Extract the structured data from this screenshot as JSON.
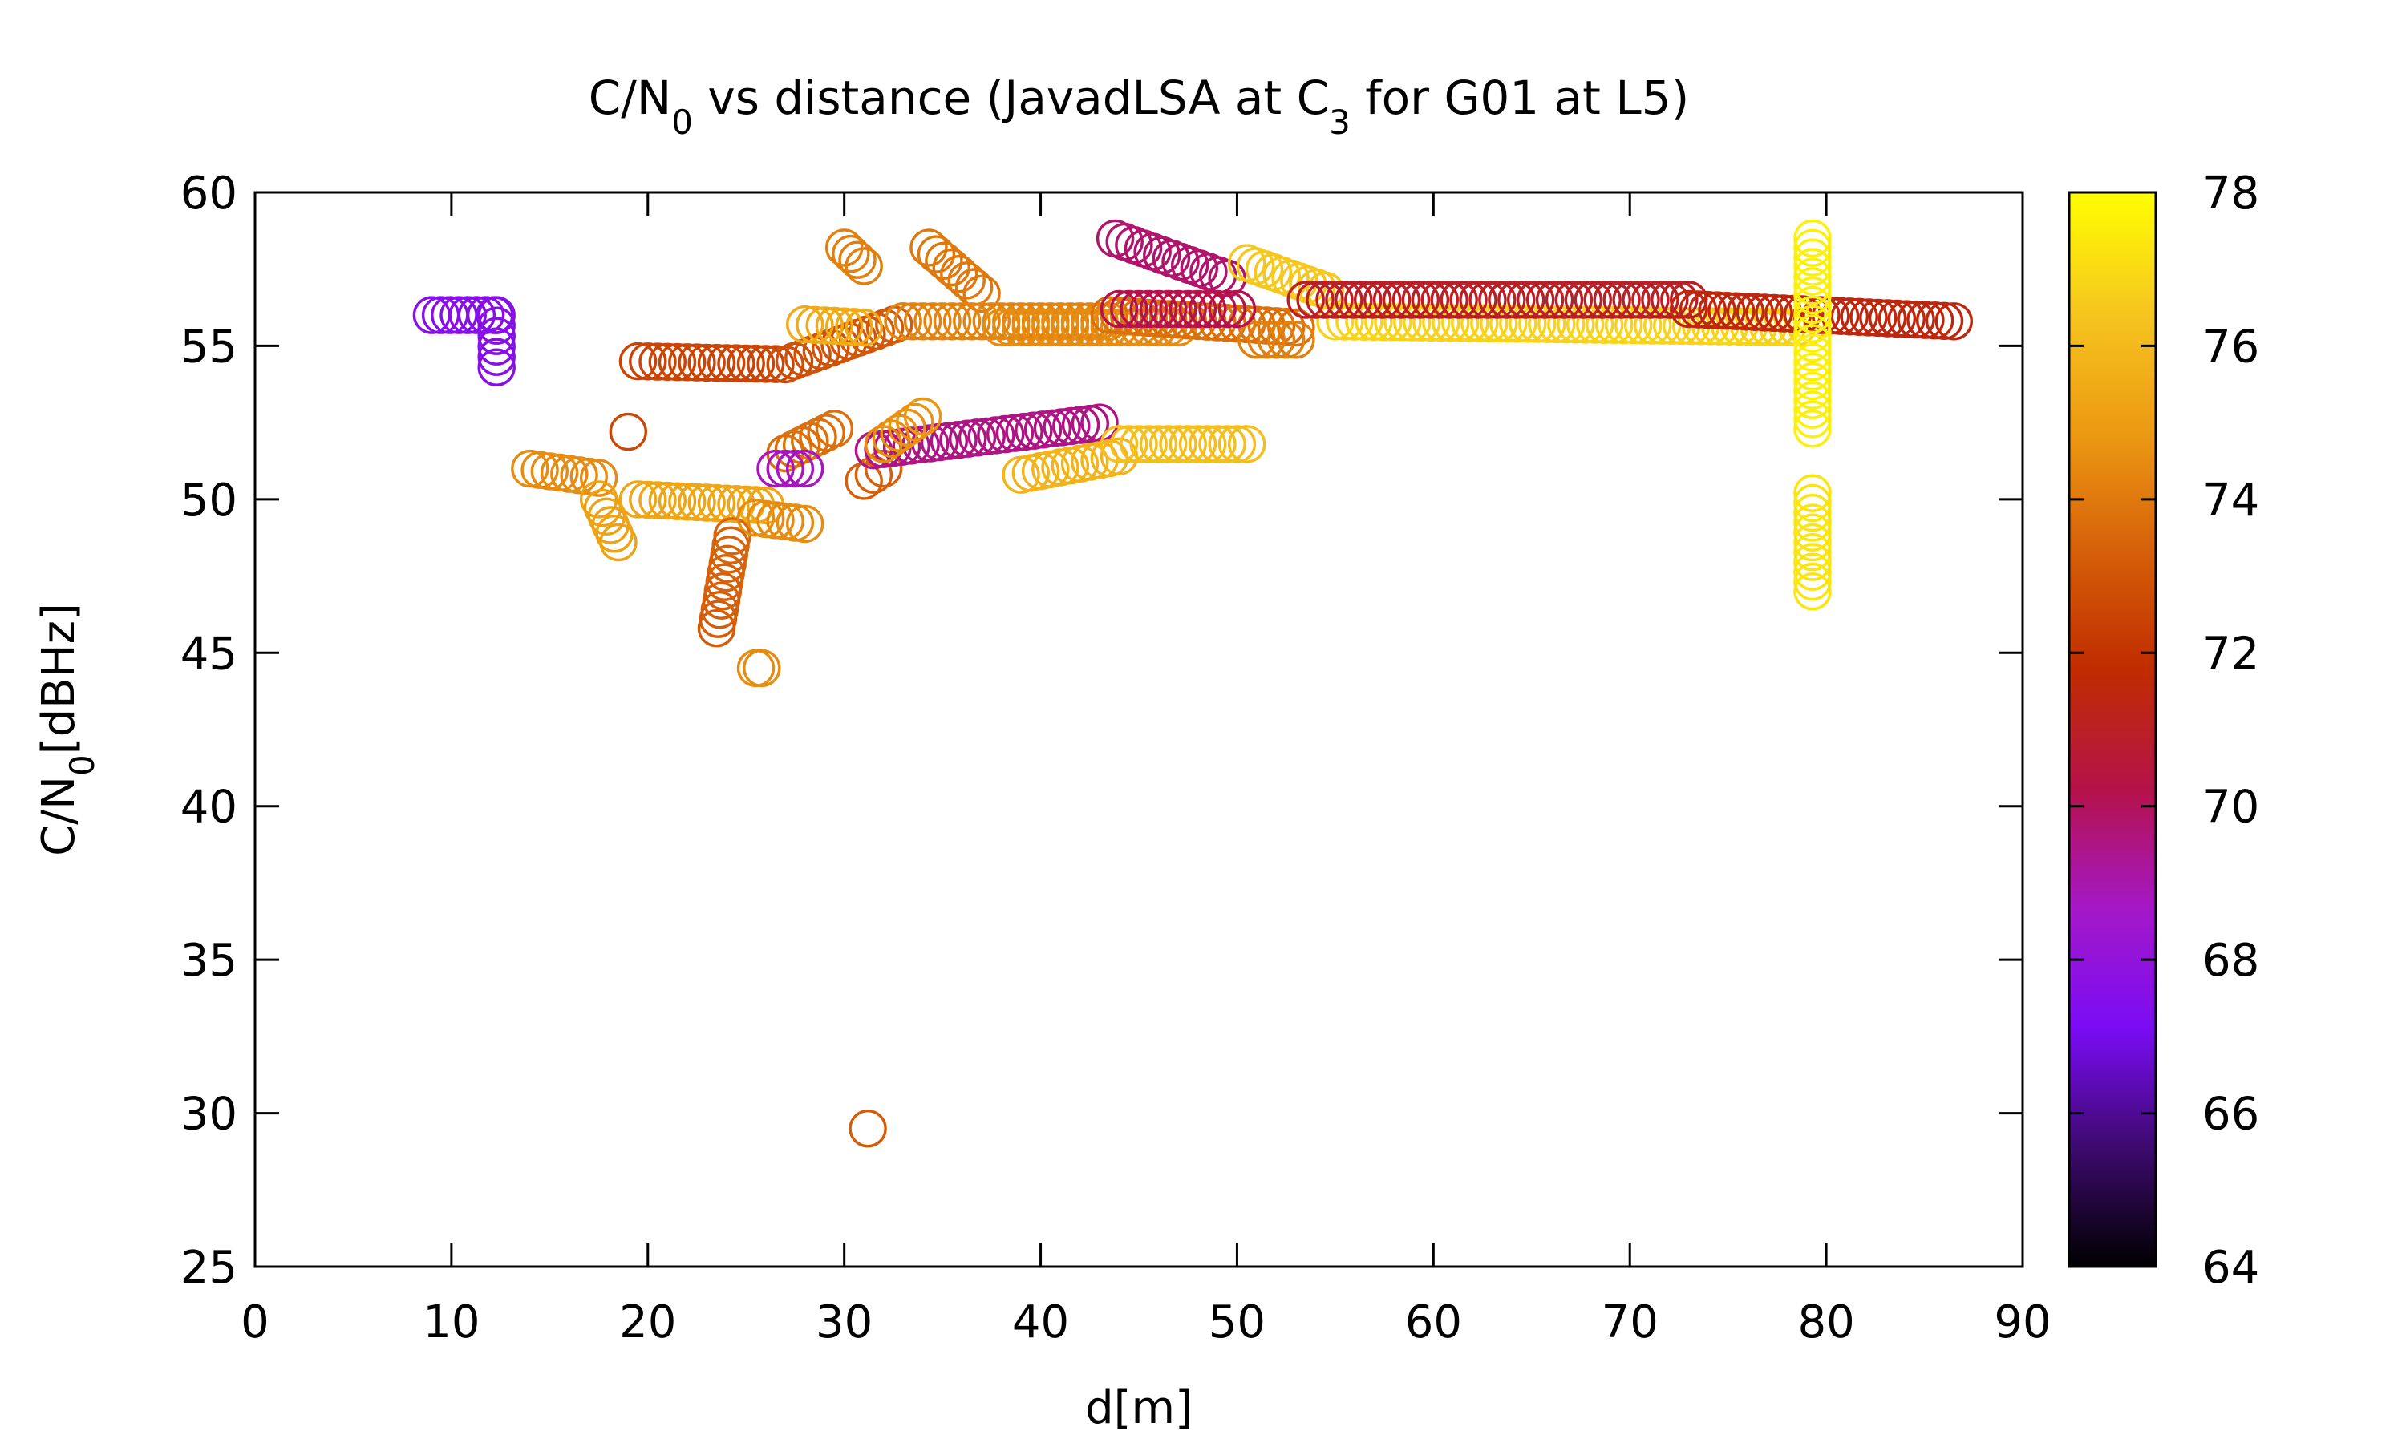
{
  "chart_data": {
    "type": "scatter",
    "title": {
      "parts": [
        "C/N",
        "0",
        " vs distance (JavadLSA at C",
        "3",
        " for G01 at L5)"
      ]
    },
    "xlabel": "d[m]",
    "ylabel": {
      "parts": [
        "C/N",
        "0",
        "[dBHz]"
      ]
    },
    "xlim": [
      0,
      90
    ],
    "ylim": [
      25,
      60
    ],
    "x_ticks": [
      "0",
      "10",
      "20",
      "30",
      "40",
      "50",
      "60",
      "70",
      "80",
      "90"
    ],
    "y_ticks": [
      "25",
      "30",
      "35",
      "40",
      "45",
      "50",
      "55",
      "60"
    ],
    "colorbar": {
      "range": [
        64,
        78
      ],
      "ticks": [
        "64",
        "66",
        "68",
        "70",
        "72",
        "74",
        "76",
        "78"
      ],
      "palette": [
        "#000000",
        "#3d0a6e",
        "#7a0cf5",
        "#a418c7",
        "#b5124a",
        "#c02c00",
        "#d5600a",
        "#ec9a12",
        "#f6c61f",
        "#ffff00"
      ]
    },
    "marker": "open-circle",
    "series": [
      {
        "segments": [
          {
            "x": [
              9,
              12.2
            ],
            "y": [
              56,
              56
            ],
            "c": [
              67.6,
              67.6
            ]
          },
          {
            "x": [
              12.3,
              12.3
            ],
            "y": [
              56,
              54.3
            ],
            "c": [
              67.6,
              67.6
            ]
          }
        ]
      },
      {
        "segments": [
          {
            "x": [
              19.5,
              27
            ],
            "y": [
              54.5,
              54.4
            ],
            "c": [
              72.5,
              72.5
            ]
          },
          {
            "x": [
              27,
              33
            ],
            "y": [
              54.4,
              55.8
            ],
            "c": [
              72.8,
              73.2
            ]
          }
        ]
      },
      {
        "points": {
          "x": [
            19
          ],
          "y": [
            52.2
          ],
          "c": [
            72.6
          ]
        }
      },
      {
        "segments": [
          {
            "x": [
              14,
              17.5
            ],
            "y": [
              51,
              50.7
            ],
            "c": [
              74.5,
              74.5
            ]
          },
          {
            "x": [
              17.5,
              18.5
            ],
            "y": [
              50,
              48.6
            ],
            "c": [
              75.2,
              75.2
            ]
          },
          {
            "x": [
              19.5,
              26
            ],
            "y": [
              50,
              49.8
            ],
            "c": [
              75.3,
              75.3
            ]
          }
        ]
      },
      {
        "segments": [
          {
            "x": [
              23.5,
              24.3
            ],
            "y": [
              45.8,
              48.8
            ],
            "c": [
              73.2,
              73.5
            ]
          },
          {
            "x": [
              25.5,
              25.8
            ],
            "y": [
              44.5,
              44.5
            ],
            "c": [
              74.5,
              74.5
            ]
          }
        ]
      },
      {
        "segments": [
          {
            "x": [
              25.5,
              28
            ],
            "y": [
              49.4,
              49.2
            ],
            "c": [
              74.5,
              74.5
            ]
          }
        ]
      },
      {
        "segments": [
          {
            "x": [
              27,
              29.5
            ],
            "y": [
              51.5,
              52.3
            ],
            "c": [
              73.8,
              73.8
            ]
          },
          {
            "x": [
              31,
              32
            ],
            "y": [
              50.6,
              51
            ],
            "c": [
              73.3,
              73.3
            ]
          }
        ]
      },
      {
        "segments": [
          {
            "x": [
              26.5,
              28
            ],
            "y": [
              51,
              51
            ],
            "c": [
              68.8,
              68.8
            ]
          }
        ]
      },
      {
        "segments": [
          {
            "x": [
              31.5,
              43
            ],
            "y": [
              51.6,
              52.5
            ],
            "c": [
              69.5,
              69.5
            ]
          }
        ]
      },
      {
        "segments": [
          {
            "x": [
              32,
              34
            ],
            "y": [
              51.8,
              52.7
            ],
            "c": [
              74.5,
              74.8
            ]
          }
        ]
      },
      {
        "segments": [
          {
            "x": [
              39,
              44
            ],
            "y": [
              50.8,
              51.4
            ],
            "c": [
              75.8,
              75.8
            ]
          },
          {
            "x": [
              44,
              50.5
            ],
            "y": [
              51.8,
              51.8
            ],
            "c": [
              76.2,
              76.2
            ]
          }
        ]
      },
      {
        "segments": [
          {
            "x": [
              28,
              31
            ],
            "y": [
              55.7,
              55.6
            ],
            "c": [
              75.5,
              75.5
            ]
          }
        ]
      },
      {
        "segments": [
          {
            "x": [
              30,
              31
            ],
            "y": [
              58.2,
              57.6
            ],
            "c": [
              74.2,
              74.2
            ]
          },
          {
            "x": [
              34.3,
              37
            ],
            "y": [
              58.2,
              56.7
            ],
            "c": [
              74.0,
              74.0
            ]
          }
        ]
      },
      {
        "points": {
          "x": [
            31.2
          ],
          "y": [
            29.5
          ],
          "c": [
            73.2
          ]
        }
      },
      {
        "segments": [
          {
            "x": [
              33,
              43.5
            ],
            "y": [
              55.8,
              55.8
            ],
            "c": [
              74.3,
              74.3
            ]
          },
          {
            "x": [
              38,
              47
            ],
            "y": [
              55.6,
              55.6
            ],
            "c": [
              74.5,
              74.5
            ]
          },
          {
            "x": [
              43.5,
              53
            ],
            "y": [
              56,
              55.6
            ],
            "c": [
              73.8,
              73.8
            ]
          },
          {
            "x": [
              51,
              53
            ],
            "y": [
              55.2,
              55.2
            ],
            "c": [
              74.2,
              74.2
            ]
          }
        ]
      },
      {
        "segments": [
          {
            "x": [
              43.8,
              49.5
            ],
            "y": [
              58.5,
              57.2
            ],
            "c": [
              69.8,
              69.8
            ]
          },
          {
            "x": [
              44,
              50
            ],
            "y": [
              56.2,
              56.2
            ],
            "c": [
              70.2,
              70.2
            ]
          }
        ]
      },
      {
        "segments": [
          {
            "x": [
              50.5,
              54.5
            ],
            "y": [
              57.7,
              56.8
            ],
            "c": [
              76.5,
              76.5
            ]
          },
          {
            "x": [
              55,
              79
            ],
            "y": [
              55.8,
              55.6
            ],
            "c": [
              76.8,
              76.8
            ]
          }
        ]
      },
      {
        "segments": [
          {
            "x": [
              53.5,
              73
            ],
            "y": [
              56.5,
              56.5
            ],
            "c": [
              71.0,
              71.0
            ]
          },
          {
            "x": [
              73,
              86.5
            ],
            "y": [
              56.2,
              55.8
            ],
            "c": [
              71.5,
              71.5
            ]
          }
        ]
      },
      {
        "segments": [
          {
            "x": [
              79.3,
              79.3
            ],
            "y": [
              58.5,
              52.3
            ],
            "c": [
              77.6,
              77.6
            ]
          },
          {
            "x": [
              79.3,
              79.3
            ],
            "y": [
              50.2,
              47.0
            ],
            "c": [
              77.3,
              77.3
            ]
          }
        ]
      }
    ]
  }
}
